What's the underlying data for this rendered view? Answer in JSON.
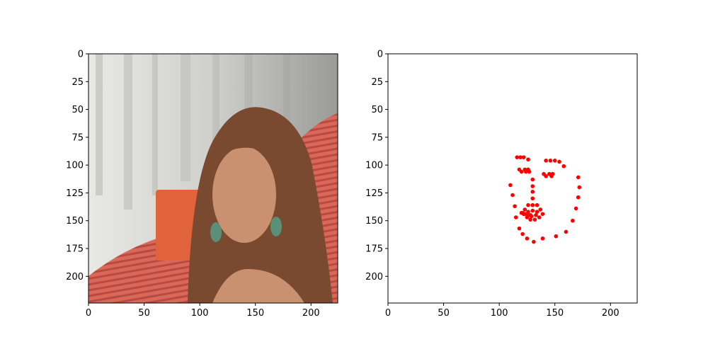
{
  "chart_data": [
    {
      "type": "image",
      "title": "",
      "xlabel": "",
      "ylabel": "",
      "xlim": [
        0,
        224
      ],
      "ylim": [
        224,
        0
      ],
      "x_ticks": [
        "0",
        "50",
        "100",
        "150",
        "200"
      ],
      "y_ticks": [
        "0",
        "25",
        "50",
        "75",
        "100",
        "125",
        "150",
        "175",
        "200"
      ],
      "colors": {
        "background_wall": "#cfcfcc",
        "curtain_light": "#e8e8e4",
        "curtain_shadow": "#9a9a96",
        "set_red": "#d9685a",
        "set_stripe": "#b84a40",
        "orange_prop": "#e0633b",
        "hair": "#7a4a30",
        "skin": "#c9916f",
        "earring": "#5a8f78"
      }
    },
    {
      "type": "scatter",
      "title": "",
      "xlabel": "",
      "ylabel": "",
      "xlim": [
        0,
        224
      ],
      "ylim": [
        224,
        0
      ],
      "x_ticks": [
        "0",
        "50",
        "100",
        "150",
        "200"
      ],
      "y_ticks": [
        "0",
        "25",
        "50",
        "75",
        "100",
        "125",
        "150",
        "175",
        "200"
      ],
      "marker_color": "#ff0000",
      "series": [
        {
          "x": [
            110,
            112,
            114,
            115,
            118,
            121,
            125,
            131,
            139,
            151,
            160,
            166,
            169,
            171,
            172,
            171,
            116,
            119,
            122,
            126,
            142,
            146,
            150,
            154,
            158,
            130,
            130,
            130,
            130,
            123,
            126,
            130,
            134,
            137,
            118,
            120,
            123,
            124,
            126,
            127,
            140,
            142,
            145,
            147,
            148,
            120,
            122,
            125,
            128,
            132,
            136,
            139,
            134,
            130,
            126,
            121,
            123,
            128,
            133,
            129,
            126,
            122
          ],
          "y": [
            118,
            127,
            137,
            147,
            157,
            162,
            166,
            169,
            166,
            164,
            160,
            150,
            139,
            129,
            120,
            111,
            93,
            93,
            93,
            95,
            96,
            96,
            96,
            97,
            101,
            113,
            119,
            124,
            130,
            140,
            136,
            136,
            136,
            140,
            104,
            106,
            104,
            106,
            104,
            106,
            108,
            110,
            108,
            110,
            108,
            143,
            144,
            147,
            149,
            149,
            147,
            144,
            142,
            141,
            142,
            143,
            144,
            145,
            145,
            146,
            145,
            144
          ]
        }
      ]
    }
  ]
}
